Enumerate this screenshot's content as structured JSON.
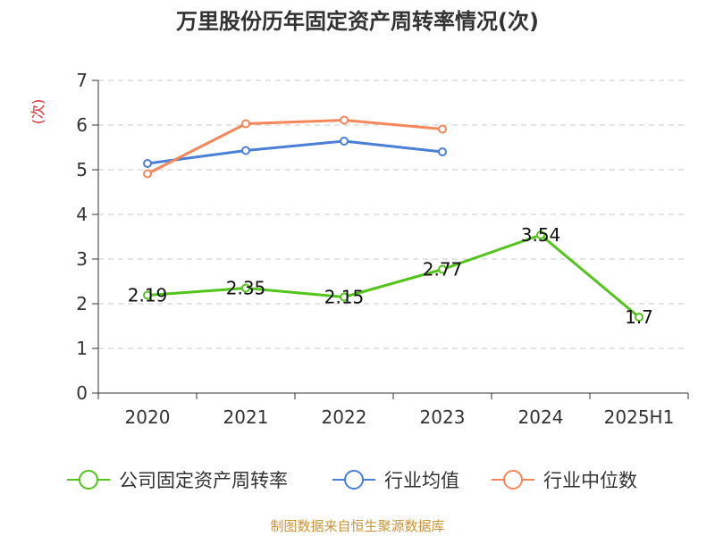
{
  "chart_data": {
    "type": "line",
    "title": "万里股份历年固定资产周转率情况(次)",
    "ylabel": "(次)",
    "xlabel": "",
    "categories": [
      "2020",
      "2021",
      "2022",
      "2023",
      "2024",
      "2025H1"
    ],
    "ylim": [
      0,
      7
    ],
    "yticks": [
      0,
      1,
      2,
      3,
      4,
      5,
      6,
      7
    ],
    "grid": true,
    "legend_position": "bottom",
    "series": [
      {
        "name": "公司固定资产周转率",
        "color": "#52c41a",
        "values": [
          2.19,
          2.35,
          2.15,
          2.77,
          3.54,
          1.7
        ],
        "labels": [
          "2.19",
          "2.35",
          "2.15",
          "2.77",
          "3.54",
          "1.7"
        ]
      },
      {
        "name": "行业均值",
        "color": "#4a7fd8",
        "values": [
          5.14,
          5.43,
          5.64,
          5.4,
          null,
          null
        ]
      },
      {
        "name": "行业中位数",
        "color": "#f5875a",
        "values": [
          4.91,
          6.03,
          6.11,
          5.91,
          null,
          null
        ]
      }
    ]
  },
  "ylabel_color": "#e0262a",
  "source": {
    "text": "制图数据来自恒生聚源数据库",
    "color": "#c8953a"
  }
}
